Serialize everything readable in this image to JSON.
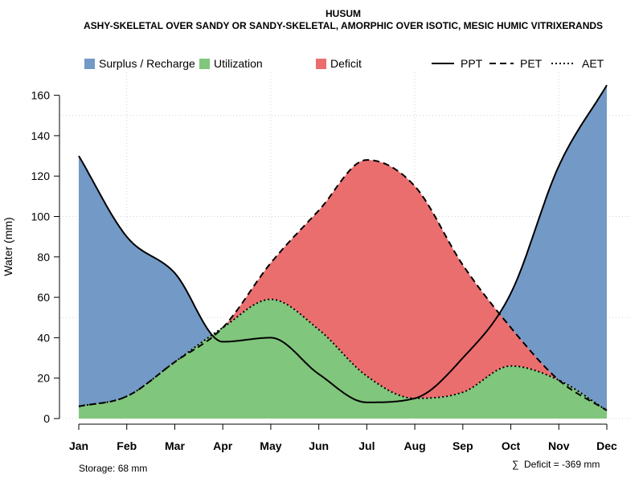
{
  "chart_data": {
    "type": "area",
    "title": "HUSUM",
    "subtitle": "ASHY-SKELETAL OVER SANDY OR SANDY-SKELETAL, AMORPHIC OVER ISOTIC, MESIC HUMIC VITRIXERANDS",
    "ylabel": "Water (mm)",
    "xlabel": "",
    "ylim": [
      0,
      170
    ],
    "y_ticks": [
      0,
      20,
      40,
      60,
      80,
      100,
      120,
      140,
      160
    ],
    "categories": [
      "Jan",
      "Feb",
      "Mar",
      "Apr",
      "May",
      "Jun",
      "Jul",
      "Aug",
      "Sep",
      "Oct",
      "Nov",
      "Dec"
    ],
    "series": [
      {
        "name": "PPT",
        "line_style": "solid",
        "values": [
          130,
          90,
          72,
          38,
          40,
          22,
          8,
          10,
          30,
          62,
          125,
          165
        ]
      },
      {
        "name": "PET",
        "line_style": "dashed",
        "values": [
          6,
          11,
          28,
          45,
          77,
          103,
          128,
          115,
          76,
          45,
          19,
          4
        ]
      },
      {
        "name": "AET",
        "line_style": "dotted",
        "values": [
          6,
          11,
          28,
          45,
          59,
          44,
          21,
          10,
          13,
          26,
          19,
          4
        ]
      }
    ],
    "legend": {
      "placement": "top",
      "areas": [
        {
          "label": "Surplus / Recharge",
          "color": "#7399C6"
        },
        {
          "label": "Utilization",
          "color": "#80C67C"
        },
        {
          "label": "Deficit",
          "color": "#EB6E6F"
        }
      ],
      "lines": [
        {
          "label": "PPT",
          "style": "solid"
        },
        {
          "label": "PET",
          "style": "dashed"
        },
        {
          "label": "AET",
          "style": "dotted"
        }
      ]
    },
    "annotations": {
      "storage": "Storage: 68 mm",
      "deficit_symbol": "∑",
      "deficit": "Deficit = -369 mm"
    },
    "grid": true
  },
  "colors": {
    "surplus": "#7399C6",
    "utilization": "#80C67C",
    "deficit": "#EB6E6F",
    "grid": "#D3D3D3",
    "line": "#000000"
  }
}
